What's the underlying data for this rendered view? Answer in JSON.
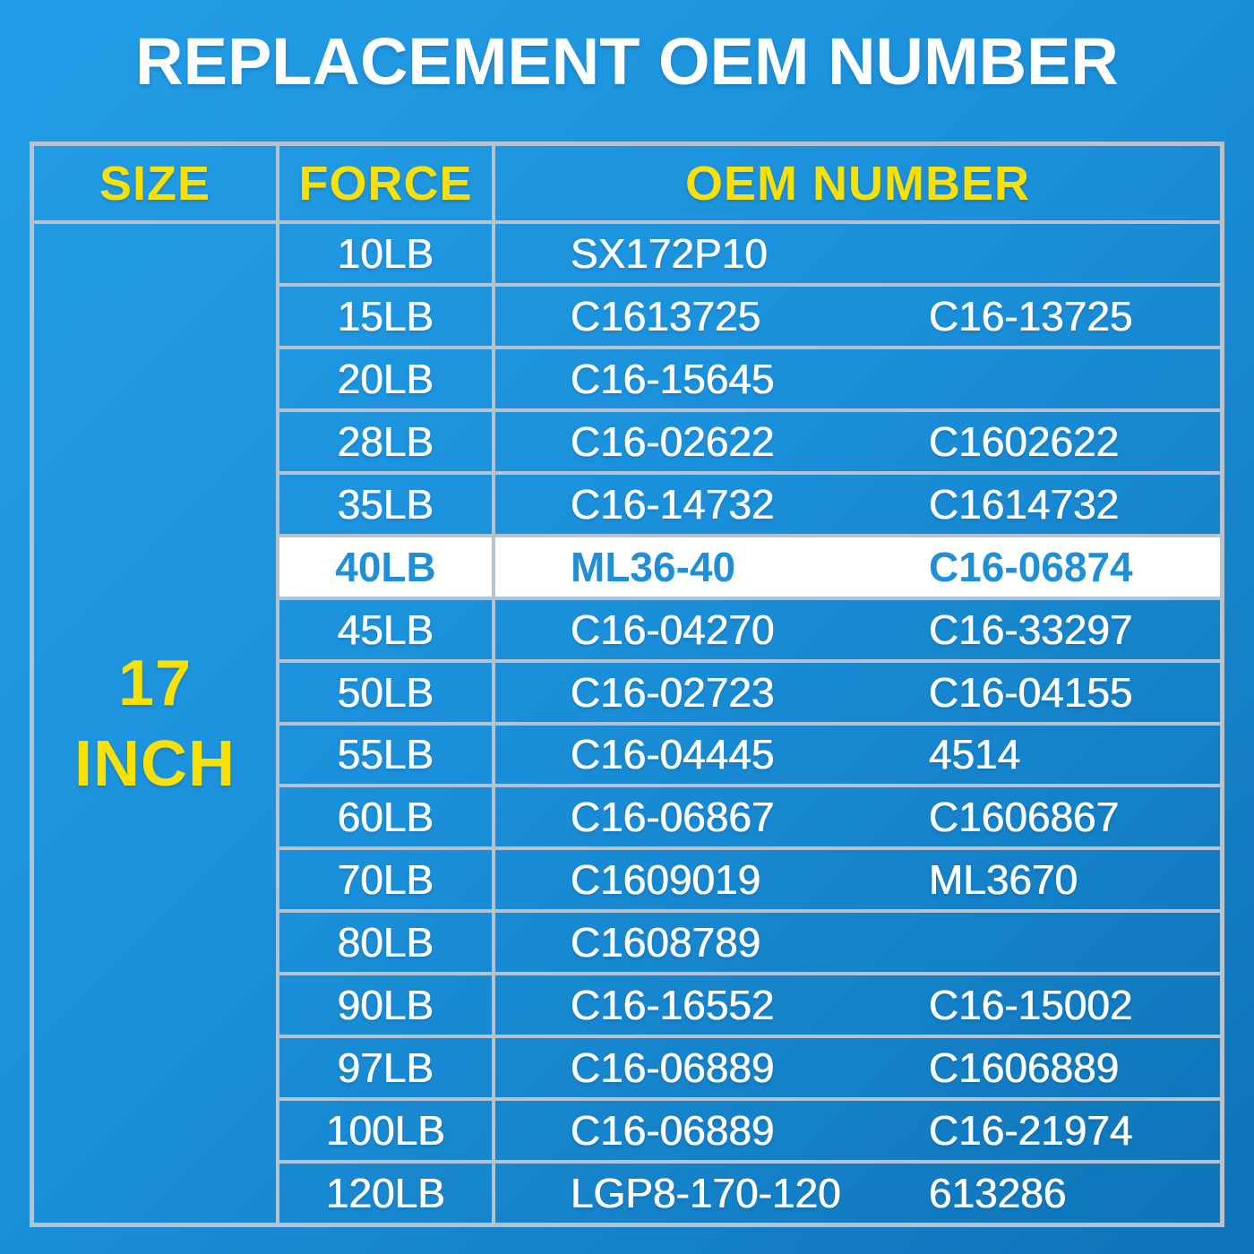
{
  "title": "REPLACEMENT OEM NUMBER",
  "header": {
    "size": "SIZE",
    "force": "FORCE",
    "oem": "OEM NUMBER"
  },
  "size_column": {
    "line1": "17",
    "line2": "INCH"
  },
  "chart_data": {
    "type": "table",
    "title": "REPLACEMENT OEM NUMBER",
    "columns": [
      "SIZE",
      "FORCE",
      "OEM NUMBER"
    ],
    "size_group": "17 INCH",
    "highlighted_force": "40LB",
    "rows": [
      {
        "force": "10LB",
        "oem1": "SX172P10",
        "oem2": ""
      },
      {
        "force": "15LB",
        "oem1": "C1613725",
        "oem2": "C16-13725"
      },
      {
        "force": "20LB",
        "oem1": "C16-15645",
        "oem2": ""
      },
      {
        "force": "28LB",
        "oem1": "C16-02622",
        "oem2": "C1602622"
      },
      {
        "force": "35LB",
        "oem1": "C16-14732",
        "oem2": "C1614732"
      },
      {
        "force": "40LB",
        "oem1": "ML36-40",
        "oem2": "C16-06874",
        "highlighted": true
      },
      {
        "force": "45LB",
        "oem1": "C16-04270",
        "oem2": "C16-33297"
      },
      {
        "force": "50LB",
        "oem1": "C16-02723",
        "oem2": "C16-04155"
      },
      {
        "force": "55LB",
        "oem1": "C16-04445",
        "oem2": "4514"
      },
      {
        "force": "60LB",
        "oem1": "C16-06867",
        "oem2": "C1606867"
      },
      {
        "force": "70LB",
        "oem1": "C1609019",
        "oem2": "ML3670"
      },
      {
        "force": "80LB",
        "oem1": "C1608789",
        "oem2": ""
      },
      {
        "force": "90LB",
        "oem1": "C16-16552",
        "oem2": "C16-15002"
      },
      {
        "force": "97LB",
        "oem1": "C16-06889",
        "oem2": "C1606889"
      },
      {
        "force": "100LB",
        "oem1": "C16-06889",
        "oem2": "C16-21974"
      },
      {
        "force": "120LB",
        "oem1": "LGP8-170-120",
        "oem2": "613286"
      }
    ]
  },
  "colors": {
    "background_top": "#239de7",
    "background_bottom": "#0e73b7",
    "accent_yellow": "#f8e106",
    "text_white": "#ffffff",
    "border": "#b6c2ce",
    "highlight_background": "#ffffff",
    "highlight_text": "#1f8fd8"
  }
}
